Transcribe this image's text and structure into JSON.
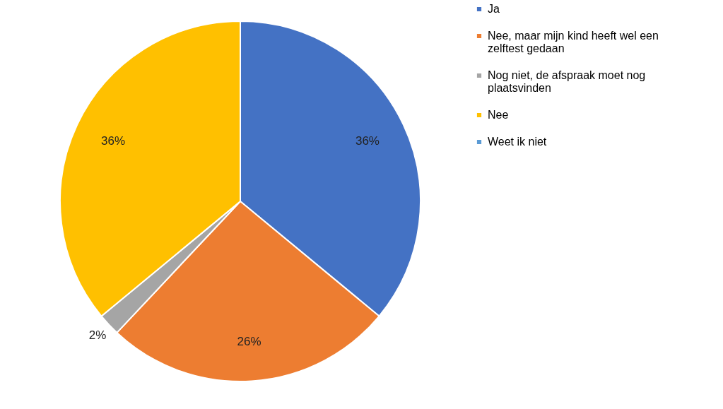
{
  "chart_data": {
    "type": "pie",
    "categories": [
      "Ja",
      "Nee, maar mijn kind heeft wel een zelftest gedaan",
      "Nog niet, de afspraak moet nog plaatsvinden",
      "Nee",
      "Weet ik niet"
    ],
    "values": [
      36,
      26,
      2,
      36,
      0
    ],
    "colors": [
      "#4472c4",
      "#ed7d31",
      "#a5a5a5",
      "#ffc000",
      "#5b9bd5"
    ],
    "value_labels": [
      "36%",
      "26%",
      "2%",
      "36%",
      null
    ],
    "legend": "right"
  }
}
